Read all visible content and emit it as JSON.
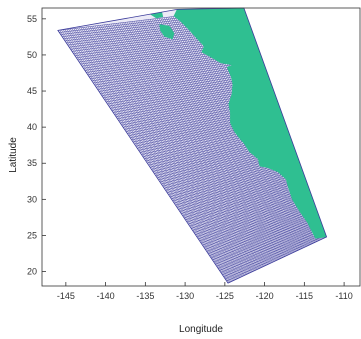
{
  "chart_data": {
    "type": "map",
    "xlabel": "Longitude",
    "ylabel": "Latitude",
    "xlim": [
      -148,
      -108
    ],
    "ylim": [
      18,
      56.5
    ],
    "xticks": [
      -145,
      -140,
      -135,
      -130,
      -125,
      -120,
      -115,
      -110
    ],
    "yticks": [
      20,
      25,
      30,
      35,
      40,
      45,
      50,
      55
    ],
    "grid": false,
    "colors": {
      "ocean_grid_lines": "#3b3b9a",
      "ocean_fill": "#ecebf7",
      "land": "#2fbf91",
      "axes": "#333333",
      "background": "#ffffff"
    },
    "domain_outline": [
      [
        -146.0,
        53.4
      ],
      [
        -131.0,
        56.3
      ],
      [
        -122.6,
        56.5
      ],
      [
        -112.2,
        24.8
      ],
      [
        -124.6,
        18.4
      ]
    ],
    "ocean_grid": {
      "columns": 105,
      "rows": 120
    },
    "land_polygon": [
      [
        -131.0,
        56.3
      ],
      [
        -122.6,
        56.5
      ],
      [
        -112.2,
        24.8
      ],
      [
        -113.6,
        24.6
      ],
      [
        -114.6,
        26.8
      ],
      [
        -115.5,
        28.2
      ],
      [
        -116.5,
        30.0
      ],
      [
        -117.0,
        31.6
      ],
      [
        -117.3,
        32.8
      ],
      [
        -118.3,
        33.8
      ],
      [
        -119.6,
        34.4
      ],
      [
        -120.6,
        34.6
      ],
      [
        -120.8,
        35.6
      ],
      [
        -121.9,
        36.6
      ],
      [
        -122.6,
        37.8
      ],
      [
        -123.1,
        38.4
      ],
      [
        -123.8,
        39.4
      ],
      [
        -124.3,
        40.6
      ],
      [
        -124.3,
        42.0
      ],
      [
        -124.5,
        43.2
      ],
      [
        -124.1,
        44.6
      ],
      [
        -124.0,
        46.0
      ],
      [
        -124.2,
        47.0
      ],
      [
        -124.7,
        48.3
      ],
      [
        -124.0,
        48.6
      ],
      [
        -125.5,
        48.9
      ],
      [
        -126.6,
        49.6
      ],
      [
        -127.9,
        50.4
      ],
      [
        -127.6,
        51.2
      ],
      [
        -128.6,
        52.4
      ],
      [
        -129.6,
        53.6
      ],
      [
        -130.5,
        54.6
      ],
      [
        -131.4,
        55.4
      ],
      [
        -131.0,
        56.3
      ]
    ],
    "islands": [
      [
        [
          -133.2,
          54.2
        ],
        [
          -132.0,
          54.0
        ],
        [
          -131.4,
          53.0
        ],
        [
          -131.6,
          52.2
        ],
        [
          -132.6,
          52.6
        ],
        [
          -133.1,
          53.4
        ]
      ],
      [
        [
          -134.2,
          56.2
        ],
        [
          -133.0,
          56.2
        ],
        [
          -132.8,
          55.3
        ],
        [
          -133.6,
          55.1
        ],
        [
          -134.3,
          55.6
        ]
      ]
    ]
  }
}
